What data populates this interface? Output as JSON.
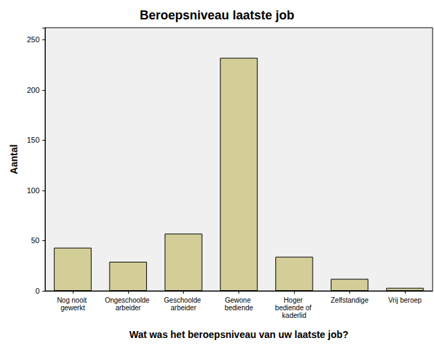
{
  "chart_data": {
    "type": "bar",
    "title": "Beroepsniveau laatste job",
    "x_label": "Wat was het beroepsniveau van uw laatste job?",
    "y_label": "Aantal",
    "categories": [
      "Nog nooit gewerkt",
      "Ongeschoolde arbeider",
      "Geschoolde arbeider",
      "Gewone bediende",
      "Hoger bediende of kaderlid",
      "Zelfstandige",
      "Vrij beroep"
    ],
    "values": [
      43,
      29,
      57,
      232,
      34,
      12,
      3
    ],
    "color": "#d3ce98",
    "ylim": [
      0,
      262
    ],
    "yticks": [
      0,
      50,
      100,
      150,
      200,
      250
    ],
    "grid": false
  }
}
